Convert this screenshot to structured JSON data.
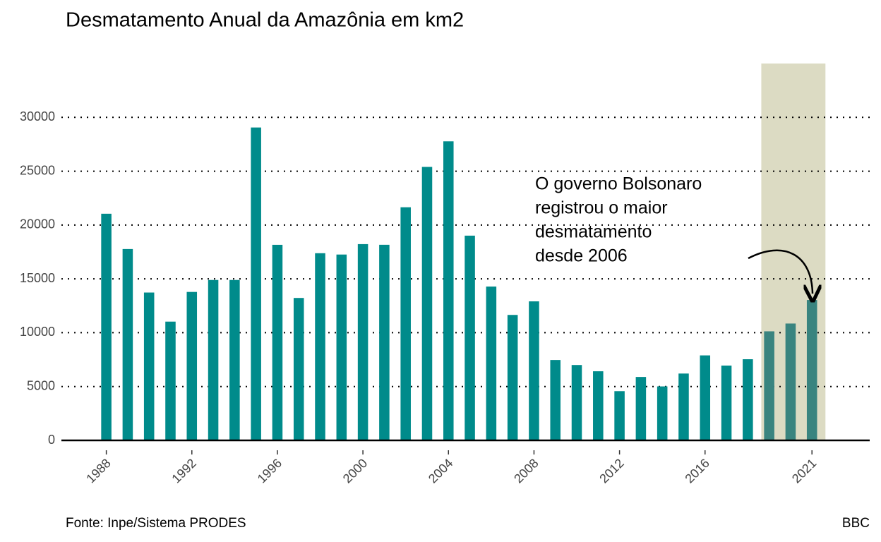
{
  "chart_data": {
    "type": "bar",
    "title": "Desmatamento Anual da Amazônia em km2",
    "source": "Fonte: Inpe/Sistema PRODES",
    "credit": "BBC",
    "annotation": [
      "O governo Bolsonaro",
      "registrou o maior",
      "desmatamento",
      "desde 2006"
    ],
    "x": [
      1988,
      1989,
      1990,
      1991,
      1992,
      1993,
      1994,
      1995,
      1996,
      1997,
      1998,
      1999,
      2000,
      2001,
      2002,
      2003,
      2004,
      2005,
      2006,
      2007,
      2008,
      2009,
      2010,
      2011,
      2012,
      2013,
      2014,
      2015,
      2016,
      2017,
      2018,
      2019,
      2020,
      2021
    ],
    "values": [
      21050,
      17770,
      13730,
      11030,
      13786,
      14896,
      14896,
      29059,
      18161,
      13227,
      17383,
      17259,
      18226,
      18165,
      21651,
      25396,
      27772,
      19014,
      14286,
      11651,
      12911,
      7464,
      7000,
      6418,
      4571,
      5891,
      5012,
      6207,
      7893,
      6947,
      7536,
      10129,
      10851,
      13038
    ],
    "color": "#008b8b",
    "highlight": {
      "from": 2019,
      "to": 2021,
      "color": "#dcdbc3",
      "bar_color": "#39847f"
    },
    "xlim": [
      1985.9,
      2023.7
    ],
    "xticks": [
      1988,
      1992,
      1996,
      2000,
      2004,
      2008,
      2012,
      2016,
      2021
    ],
    "ylim": [
      0,
      35000
    ],
    "yticks": [
      0,
      5000,
      10000,
      15000,
      20000,
      25000,
      30000
    ],
    "grid": true
  }
}
